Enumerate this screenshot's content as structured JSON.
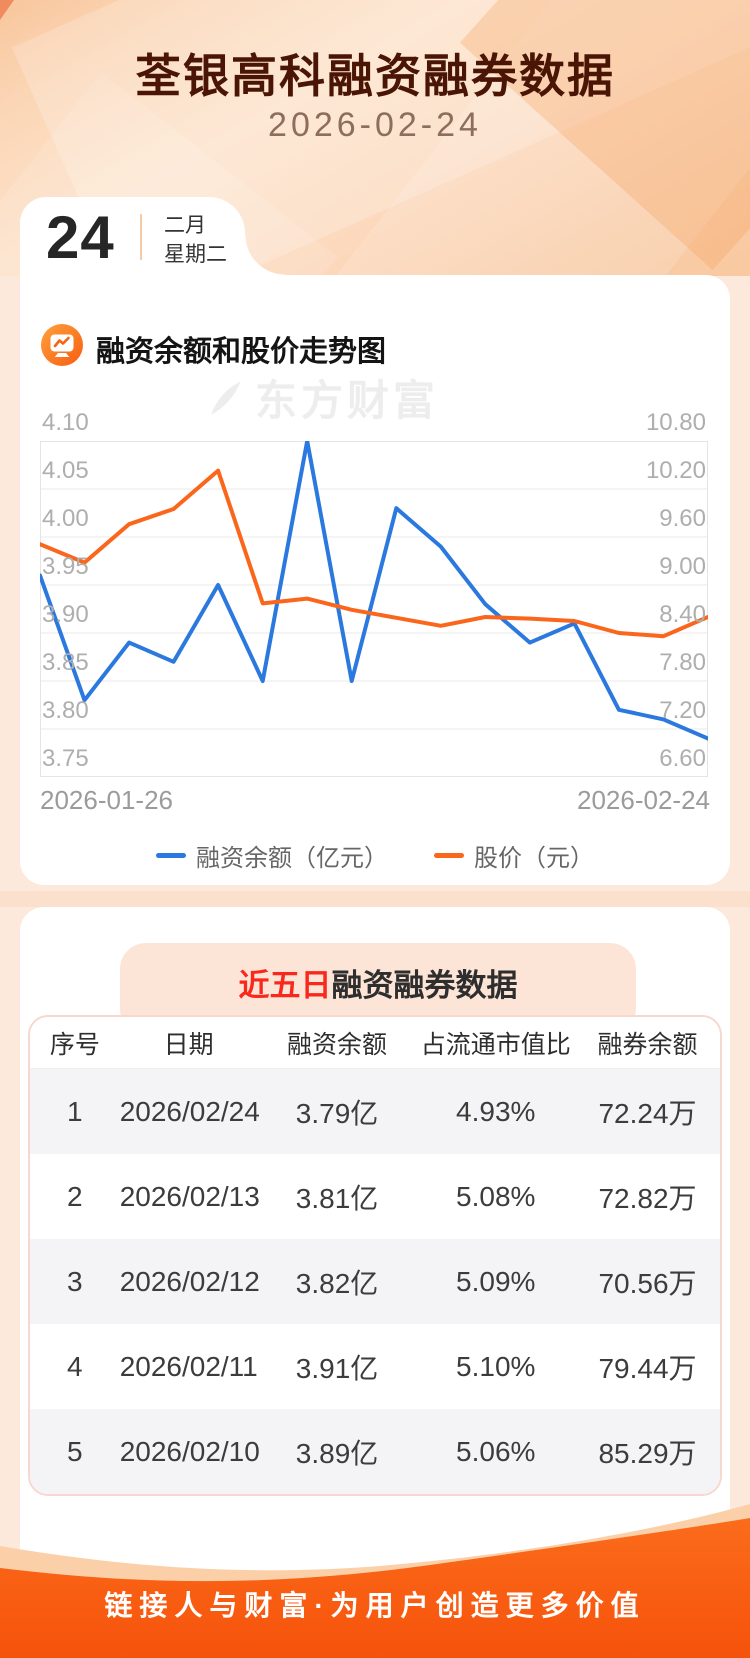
{
  "header": {
    "title": "荃银高科融资融券数据",
    "date": "2026-02-24"
  },
  "date_card": {
    "day": "24",
    "month": "二月",
    "weekday": "星期二"
  },
  "watermark_brand": "东方财富",
  "chart_section": {
    "title": "融资余额和股价走势图",
    "x_axis": {
      "start": "2026-01-26",
      "end": "2026-02-24"
    }
  },
  "chart_data": {
    "type": "line",
    "title": "融资余额和股价走势图",
    "x_tick_labels_visible": [
      "2026-01-26",
      "2026-02-24"
    ],
    "series": [
      {
        "name": "融资余额（亿元）",
        "axis": "left",
        "color": "#2b79df",
        "values": [
          3.96,
          3.83,
          3.89,
          3.87,
          3.95,
          3.85,
          4.1,
          3.85,
          4.03,
          3.99,
          3.93,
          3.89,
          3.91,
          3.82,
          3.81,
          3.79
        ]
      },
      {
        "name": "股价（元）",
        "axis": "right",
        "color": "#fa661c",
        "values": [
          9.51,
          9.28,
          9.76,
          9.95,
          10.43,
          8.77,
          8.83,
          8.69,
          8.59,
          8.49,
          8.6,
          8.58,
          8.55,
          8.4,
          8.36,
          8.6
        ]
      }
    ],
    "left_axis": {
      "min": 3.75,
      "max": 4.1,
      "ticks": [
        "4.10",
        "4.05",
        "4.00",
        "3.95",
        "3.90",
        "3.85",
        "3.80",
        "3.75"
      ]
    },
    "right_axis": {
      "min": 6.6,
      "max": 10.8,
      "ticks": [
        "10.80",
        "10.20",
        "9.60",
        "9.00",
        "8.40",
        "7.80",
        "7.20",
        "6.60"
      ]
    },
    "grid": true,
    "legend_position": "bottom"
  },
  "table_section": {
    "title_highlight": "近五日",
    "title_rest": "融资融券数据",
    "columns": [
      "序号",
      "日期",
      "融资余额",
      "占流通市值比",
      "融券余额"
    ],
    "rows": [
      [
        "1",
        "2026/02/24",
        "3.79亿",
        "4.93%",
        "72.24万"
      ],
      [
        "2",
        "2026/02/13",
        "3.81亿",
        "5.08%",
        "72.82万"
      ],
      [
        "3",
        "2026/02/12",
        "3.82亿",
        "5.09%",
        "70.56万"
      ],
      [
        "4",
        "2026/02/11",
        "3.91亿",
        "5.10%",
        "79.44万"
      ],
      [
        "5",
        "2026/02/10",
        "3.89亿",
        "5.06%",
        "85.29万"
      ]
    ]
  },
  "footer": {
    "slogan": "链接人与财富·为用户创造更多价值"
  },
  "colors": {
    "blue_line": "#2b79df",
    "orange_line": "#fa661c",
    "highlight_red": "#f9281c",
    "footer_orange": "#f85a0e",
    "header_peach": "#fbd6b6",
    "banner_pink": "#fce5d6",
    "table_border_pink": "#f8d7d0",
    "alt_row_gray": "#f4f4f6"
  }
}
